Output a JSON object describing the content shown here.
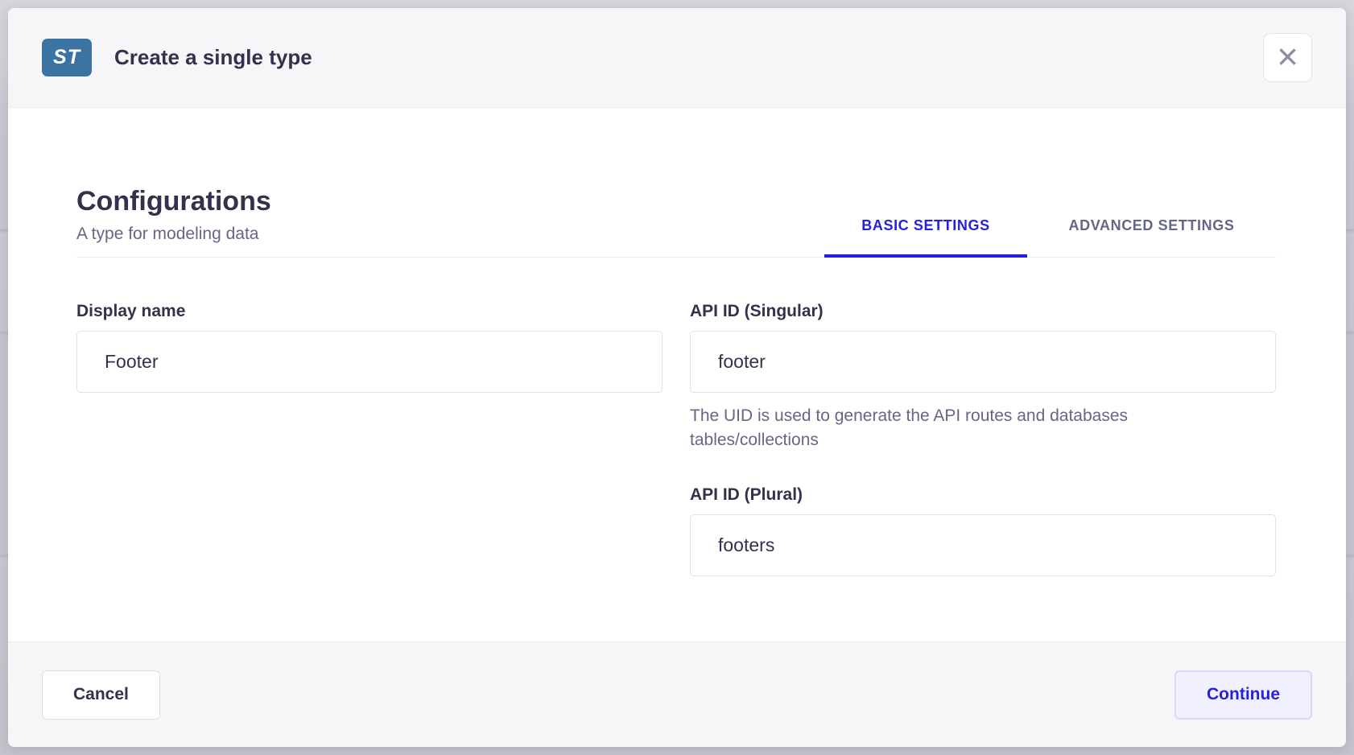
{
  "modal": {
    "header": {
      "badge": "ST",
      "title": "Create a single type",
      "close_icon": "×"
    },
    "section": {
      "title": "Configurations",
      "subtitle": "A type for modeling data"
    },
    "tabs": [
      {
        "label": "BASIC SETTINGS",
        "active": true
      },
      {
        "label": "ADVANCED SETTINGS",
        "active": false
      }
    ],
    "form": {
      "display_name": {
        "label": "Display name",
        "value": "Footer"
      },
      "api_id_singular": {
        "label": "API ID (Singular)",
        "value": "footer",
        "hint": "The UID is used to generate the API routes and databases tables/collections"
      },
      "api_id_plural": {
        "label": "API ID (Plural)",
        "value": "footers"
      }
    },
    "footer": {
      "cancel_label": "Cancel",
      "continue_label": "Continue"
    }
  },
  "colors": {
    "accent_blue": "#271fe0",
    "badge_blue": "#3b73a3",
    "text_dark": "#32324d",
    "text_muted": "#666687",
    "surface_gray": "#f6f6f9",
    "border_gray": "#eaeaef",
    "continue_bg": "#f0f0ff",
    "continue_border": "#d9d8ff"
  }
}
